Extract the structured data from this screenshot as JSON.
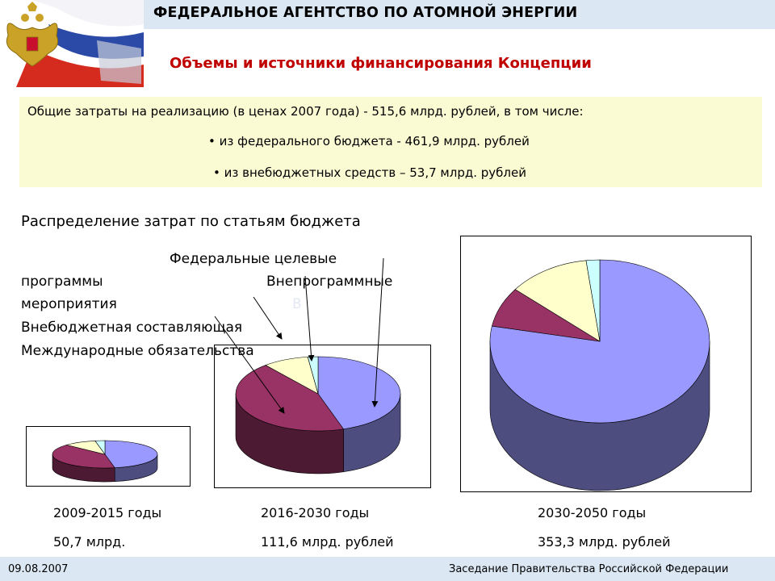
{
  "header": {
    "title": "ФЕДЕРАЛЬНОЕ АГЕНТСТВО ПО АТОМНОЙ ЭНЕРГИИ",
    "subtitle": "Объемы и источники финансирования Концепции"
  },
  "summary": {
    "main": "Общие затраты на реализацию (в ценах 2007 года) - 515,6 млрд. рублей, в том числе:",
    "bullet1": "из федерального бюджета - 461,9 млрд. рублей",
    "bullet2": "из внебюджетных средств – 53,7 млрд. рублей",
    "bullet_symbol": "•"
  },
  "distribution": {
    "title": "Распределение затрат по статьям бюджета",
    "legend": {
      "line1": "Федеральные целевые",
      "line2a": "программы",
      "line2b": "Внепрограммные",
      "line3": "мероприятия",
      "line3_faint": "В",
      "line4": "Внебюджетная составляющая",
      "line5": "Международные обязательства"
    }
  },
  "chart_data": [
    {
      "type": "pie",
      "period": "2009-2015 годы",
      "total": "50,7 млрд.",
      "categories": [
        "Федеральные целевые программы",
        "Внепрограммные мероприятия",
        "Внебюджетная составляющая",
        "Международные обязательства"
      ],
      "values": [
        47,
        40,
        10,
        3
      ],
      "colors": [
        "#9999ff",
        "#993366",
        "#ffffcc",
        "#ccffff"
      ]
    },
    {
      "type": "pie",
      "period": "2016-2030 годы",
      "total": "111,6 млрд. рублей",
      "categories": [
        "Федеральные целевые программы",
        "Внепрограммные мероприятия",
        "Внебюджетная составляющая",
        "Международные обязательства"
      ],
      "values": [
        45,
        44,
        9,
        2
      ],
      "colors": [
        "#9999ff",
        "#993366",
        "#ffffcc",
        "#ccffff"
      ]
    },
    {
      "type": "pie",
      "period": "2030-2050 годы",
      "total": "353,3 млрд. рублей",
      "categories": [
        "Федеральные целевые программы",
        "Внепрограммные мероприятия",
        "Внебюджетная составляющая",
        "Международные обязательства"
      ],
      "values": [
        78,
        8,
        12,
        2
      ],
      "colors": [
        "#9999ff",
        "#993366",
        "#ffffcc",
        "#ccffff"
      ]
    }
  ],
  "footer": {
    "date": "09.08.2007",
    "title": "Заседание Правительства Российской Федерации"
  }
}
